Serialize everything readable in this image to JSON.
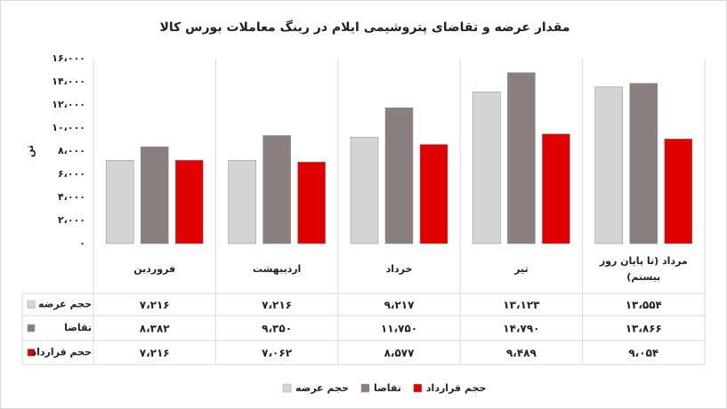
{
  "chart_data": {
    "type": "bar",
    "title": "مقدار عرضه و تقاضای پتروشیمی ایلام در رینگ معاملات بورس کالا",
    "y_label": "تن",
    "categories": [
      "فروردین",
      "اردیبهشت",
      "خرداد",
      "تیر",
      "مرداد (تا پایان روز بیستم)"
    ],
    "series": [
      {
        "name": "حجم عرضه",
        "color": "#d4d4d4",
        "values": [
          7216,
          7216,
          9217,
          13123,
          13554
        ],
        "value_labels": [
          "۷،۲۱۶",
          "۷،۲۱۶",
          "۹،۲۱۷",
          "۱۳،۱۲۳",
          "۱۳،۵۵۴"
        ]
      },
      {
        "name": "تقاضا",
        "color": "#8a7f7f",
        "values": [
          8382,
          9350,
          11750,
          14790,
          13866
        ],
        "value_labels": [
          "۸،۳۸۲",
          "۹،۳۵۰",
          "۱۱،۷۵۰",
          "۱۴،۷۹۰",
          "۱۳،۸۶۶"
        ]
      },
      {
        "name": "حجم قرارداد",
        "color": "#e00000",
        "values": [
          7216,
          7062,
          8577,
          9489,
          9054
        ],
        "value_labels": [
          "۷،۲۱۶",
          "۷،۰۶۲",
          "۸،۵۷۷",
          "۹،۴۸۹",
          "۹،۰۵۴"
        ]
      }
    ],
    "ylim": [
      0,
      16000
    ],
    "yticks": [
      {
        "value": 0,
        "label": "۰"
      },
      {
        "value": 2000,
        "label": "۲،۰۰۰"
      },
      {
        "value": 4000,
        "label": "۴،۰۰۰"
      },
      {
        "value": 6000,
        "label": "۶،۰۰۰"
      },
      {
        "value": 8000,
        "label": "۸،۰۰۰"
      },
      {
        "value": 10000,
        "label": "۱۰،۰۰۰"
      },
      {
        "value": 12000,
        "label": "۱۲،۰۰۰"
      },
      {
        "value": 14000,
        "label": "۱۴،۰۰۰"
      },
      {
        "value": 16000,
        "label": "۱۶،۰۰۰"
      }
    ],
    "legend": "bottom"
  }
}
